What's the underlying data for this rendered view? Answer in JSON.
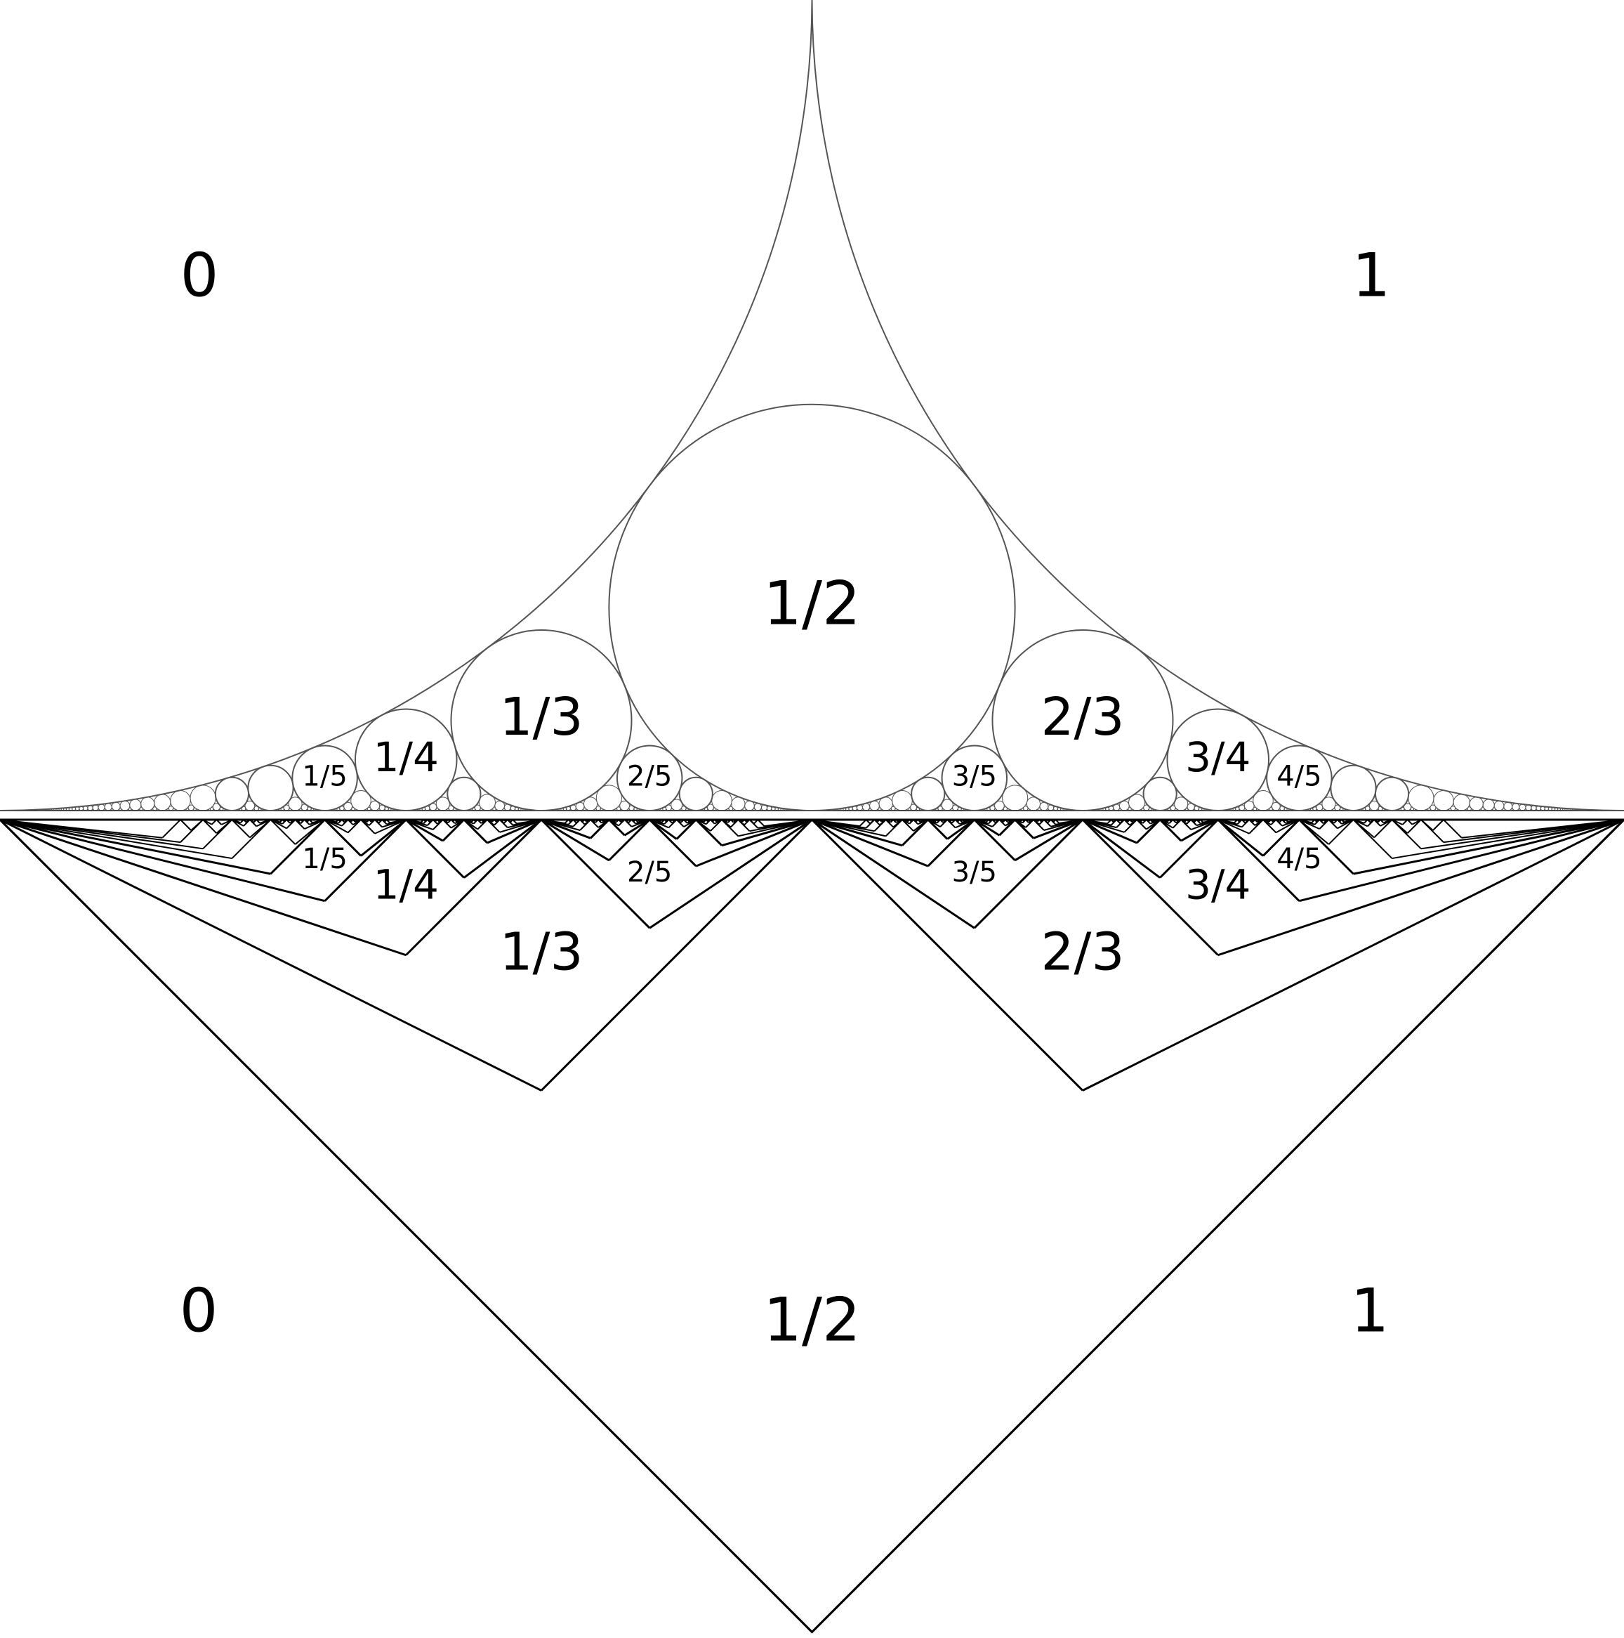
{
  "top_diagram": {
    "region_labels": {
      "left": "0",
      "right": "1"
    },
    "circle_labels": [
      "1/2",
      "1/3",
      "2/3",
      "1/4",
      "3/4",
      "1/5",
      "2/5",
      "3/5",
      "4/5"
    ],
    "max_depth": 60,
    "stroke_color": "#555555"
  },
  "bottom_diagram": {
    "region_labels": {
      "left": "0",
      "right": "1"
    },
    "square_labels": [
      "1/2",
      "1/3",
      "2/3",
      "1/4",
      "3/4",
      "1/5",
      "2/5",
      "3/5",
      "4/5"
    ],
    "max_depth": 9,
    "stroke_color": "#000000"
  }
}
